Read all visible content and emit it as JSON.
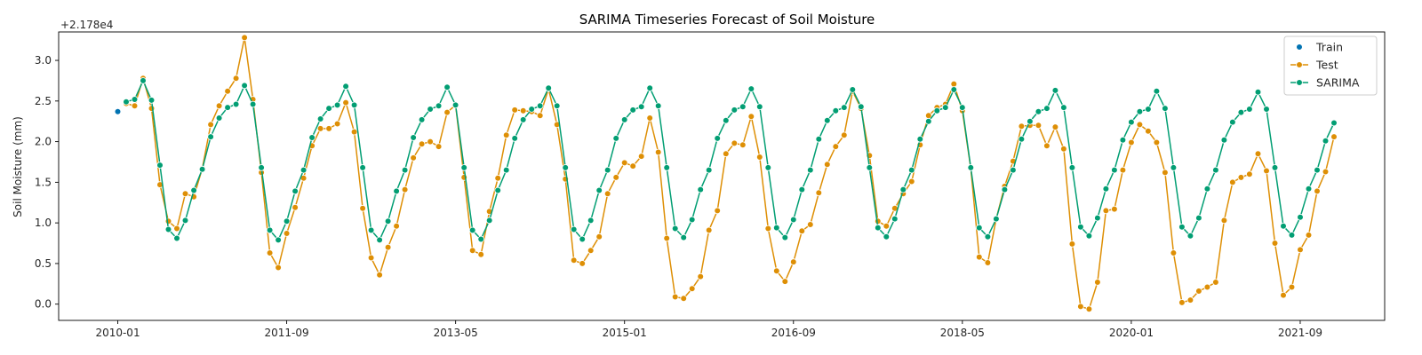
{
  "chart_data": {
    "type": "line",
    "title": "SARIMA Timeseries Forecast of Soil Moisture",
    "ylabel": "Soil Moisture (mm)",
    "xlabel": "",
    "offset_label": "+2.178e4",
    "x_ticks": [
      "2010-01",
      "2011-09",
      "2013-05",
      "2015-01",
      "2016-09",
      "2018-05",
      "2020-01",
      "2021-09"
    ],
    "y_ticks": [
      "0.0",
      "0.5",
      "1.0",
      "1.5",
      "2.0",
      "2.5",
      "3.0"
    ],
    "xlim": [
      "2009-06",
      "2022-07"
    ],
    "ylim": [
      -0.2,
      3.35
    ],
    "grid": false,
    "legend_position": "top-right",
    "colors": {
      "Train": "#0173b2",
      "Test": "#de8f05",
      "SARIMA": "#029e73"
    },
    "series": [
      {
        "name": "Train",
        "style": "scatter",
        "points": [
          {
            "x": "2010-01",
            "y": 2.37
          }
        ]
      },
      {
        "name": "Test",
        "style": "line-marker",
        "start": "2010-02",
        "values": [
          2.47,
          2.44,
          2.78,
          2.41,
          1.47,
          1.02,
          0.93,
          1.36,
          1.32,
          1.67,
          2.21,
          2.44,
          2.62,
          2.78,
          3.28,
          2.52,
          1.62,
          0.63,
          0.45,
          0.87,
          1.19,
          1.55,
          1.95,
          2.16,
          2.16,
          2.22,
          2.48,
          2.12,
          1.18,
          0.57,
          0.36,
          0.7,
          0.96,
          1.41,
          1.8,
          1.97,
          2.0,
          1.94,
          2.36,
          2.45,
          1.56,
          0.66,
          0.61,
          1.14,
          1.55,
          2.08,
          2.39,
          2.38,
          2.37,
          2.32,
          2.65,
          2.21,
          1.54,
          0.54,
          0.5,
          0.66,
          0.83,
          1.36,
          1.56,
          1.74,
          1.7,
          1.82,
          2.29,
          1.87,
          0.81,
          0.09,
          0.07,
          0.19,
          0.34,
          0.91,
          1.15,
          1.85,
          1.98,
          1.96,
          2.31,
          1.81,
          0.93,
          0.41,
          0.28,
          0.52,
          0.9,
          0.98,
          1.37,
          1.72,
          1.94,
          2.08,
          2.62,
          2.41,
          1.83,
          1.02,
          0.96,
          1.18,
          1.36,
          1.51,
          1.96,
          2.32,
          2.42,
          2.46,
          2.71,
          2.38,
          1.67,
          0.58,
          0.51,
          1.05,
          1.45,
          1.76,
          2.19,
          2.2,
          2.2,
          1.95,
          2.18,
          1.91,
          0.74,
          -0.03,
          -0.06,
          0.27,
          1.15,
          1.17,
          1.65,
          1.99,
          2.21,
          2.13,
          1.99,
          1.62,
          0.63,
          0.02,
          0.05,
          0.16,
          0.21,
          0.27,
          1.03,
          1.5,
          1.56,
          1.6,
          1.85,
          1.64,
          0.75,
          0.11,
          0.21,
          0.67,
          0.85,
          1.39,
          1.63,
          2.06
        ]
      },
      {
        "name": "SARIMA",
        "style": "line-marker",
        "start": "2010-02",
        "values": [
          2.49,
          2.52,
          2.75,
          2.51,
          1.71,
          0.92,
          0.81,
          1.03,
          1.4,
          1.66,
          2.06,
          2.29,
          2.42,
          2.46,
          2.69,
          2.46,
          1.68,
          0.91,
          0.79,
          1.02,
          1.39,
          1.65,
          2.05,
          2.28,
          2.41,
          2.45,
          2.68,
          2.45,
          1.68,
          0.91,
          0.79,
          1.02,
          1.39,
          1.65,
          2.05,
          2.27,
          2.4,
          2.44,
          2.67,
          2.45,
          1.68,
          0.91,
          0.8,
          1.03,
          1.4,
          1.65,
          2.04,
          2.27,
          2.4,
          2.44,
          2.66,
          2.44,
          1.68,
          0.92,
          0.8,
          1.03,
          1.4,
          1.65,
          2.04,
          2.27,
          2.39,
          2.43,
          2.66,
          2.44,
          1.68,
          0.93,
          0.82,
          1.04,
          1.41,
          1.65,
          2.04,
          2.26,
          2.39,
          2.43,
          2.65,
          2.43,
          1.68,
          0.94,
          0.82,
          1.04,
          1.41,
          1.65,
          2.03,
          2.26,
          2.38,
          2.42,
          2.64,
          2.43,
          1.68,
          0.94,
          0.83,
          1.05,
          1.41,
          1.65,
          2.03,
          2.25,
          2.38,
          2.42,
          2.64,
          2.42,
          1.68,
          0.94,
          0.83,
          1.05,
          1.41,
          1.65,
          2.03,
          2.25,
          2.37,
          2.41,
          2.63,
          2.42,
          1.68,
          0.95,
          0.84,
          1.06,
          1.42,
          1.65,
          2.02,
          2.24,
          2.37,
          2.4,
          2.62,
          2.41,
          1.68,
          0.95,
          0.84,
          1.06,
          1.42,
          1.65,
          2.02,
          2.24,
          2.36,
          2.4,
          2.61,
          2.4,
          1.68,
          0.96,
          0.85,
          1.07,
          1.42,
          1.65,
          2.01,
          2.23
        ]
      }
    ]
  }
}
